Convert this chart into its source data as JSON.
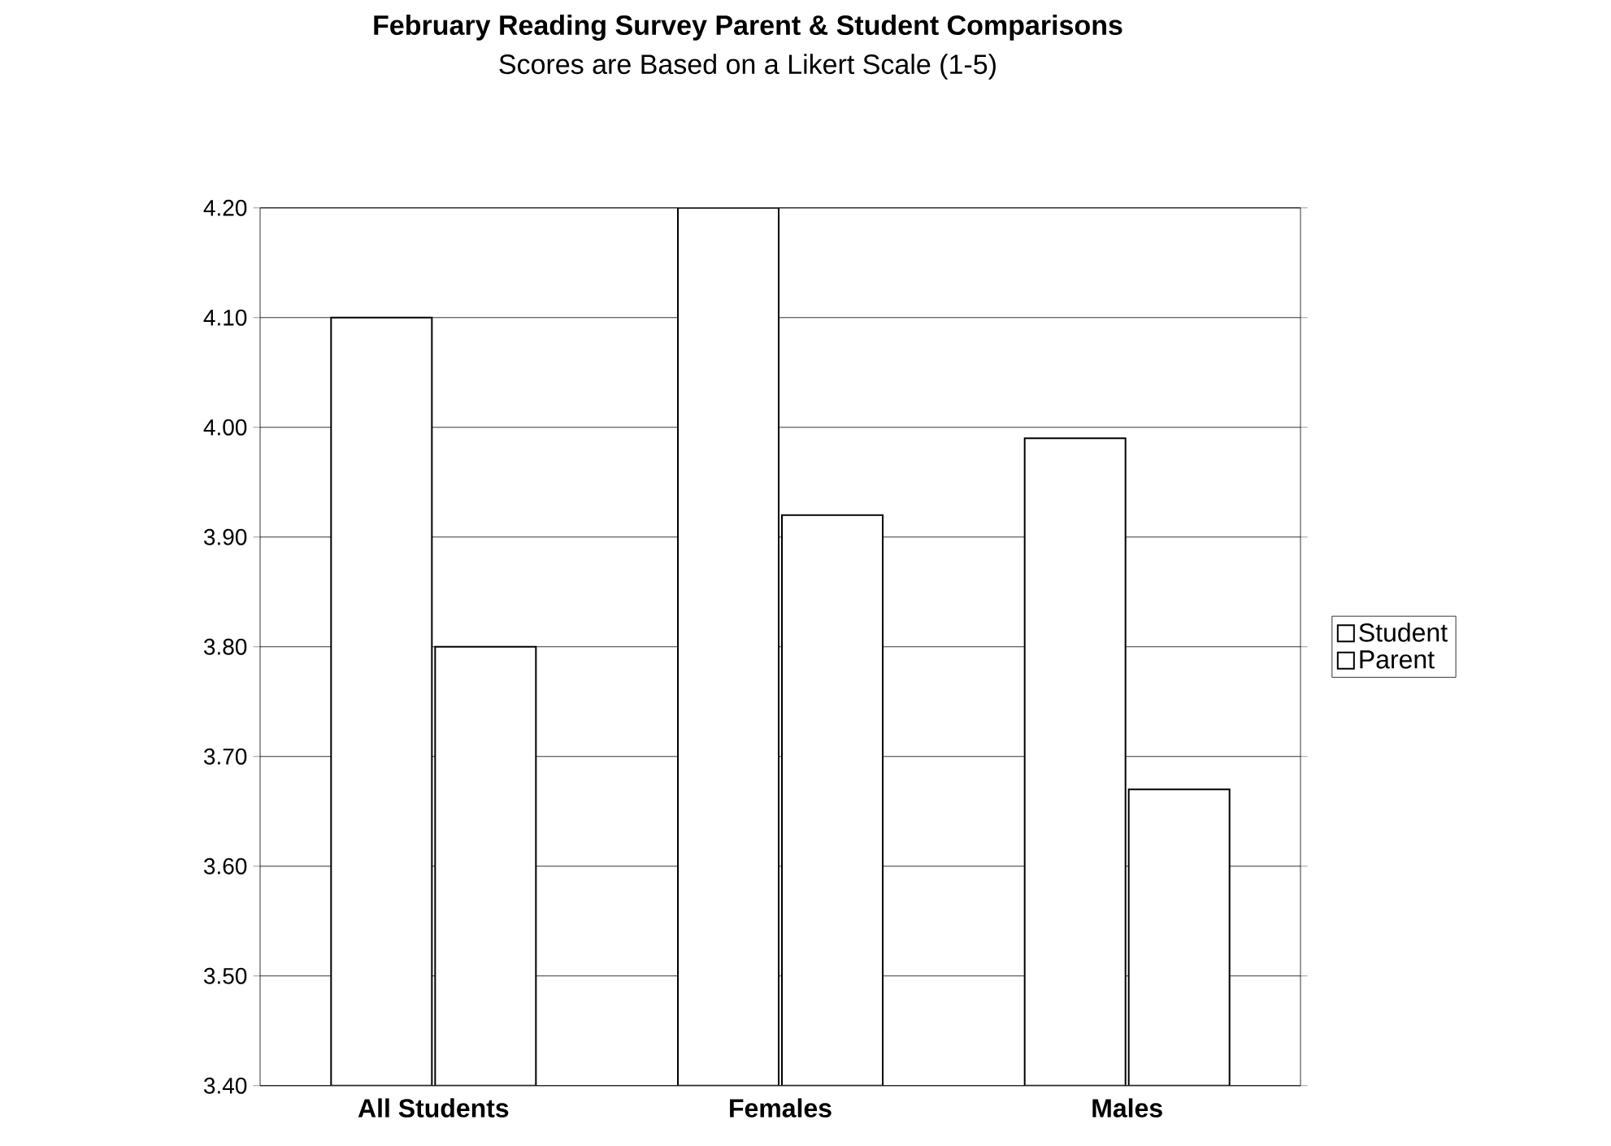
{
  "chart_data": {
    "type": "bar",
    "title": "February Reading Survey Parent & Student Comparisons",
    "subtitle": "Scores are Based on a Likert Scale (1-5)",
    "categories": [
      "All Students",
      "Females",
      "Males"
    ],
    "series": [
      {
        "name": "Student",
        "color": "#ffffff",
        "values": [
          4.1,
          4.2,
          3.99
        ]
      },
      {
        "name": "Parent",
        "color": "#ffffff",
        "values": [
          3.8,
          3.92,
          3.67
        ]
      }
    ],
    "ylim": [
      3.4,
      4.2
    ],
    "yticks": [
      {
        "value": 3.4,
        "label": "3.40"
      },
      {
        "value": 3.5,
        "label": "3.50"
      },
      {
        "value": 3.6,
        "label": "3.60"
      },
      {
        "value": 3.7,
        "label": "3.70"
      },
      {
        "value": 3.8,
        "label": "3.80"
      },
      {
        "value": 3.9,
        "label": "3.90"
      },
      {
        "value": 4.0,
        "label": "4.00"
      },
      {
        "value": 4.1,
        "label": "4.10"
      },
      {
        "value": 4.2,
        "label": "4.20"
      }
    ],
    "grid": "y",
    "legend": "right"
  }
}
